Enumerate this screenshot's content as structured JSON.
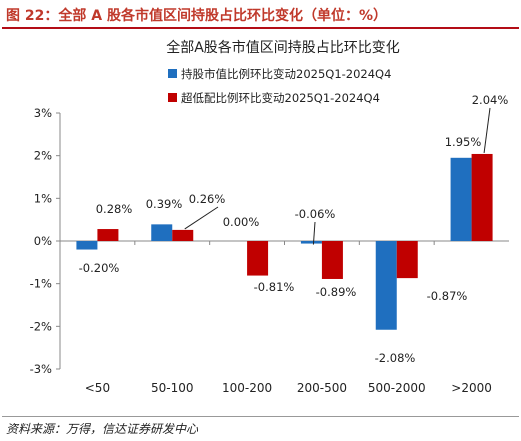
{
  "figure_label": "图 22：全部 A 股各市值区间持股占比环比变化（单位：%）",
  "source": "资料来源：万得，信达证券研发中心",
  "chart_data": {
    "type": "bar",
    "title": "全部A股各市值区间持股占比环比变化",
    "categories": [
      "<50",
      "50-100",
      "100-200",
      "200-500",
      "500-2000",
      ">2000"
    ],
    "series": [
      {
        "name": "持股市值比例环比变动2025Q1-2024Q4",
        "color": "#1f6fbf",
        "values": [
          -0.2,
          0.39,
          0.0,
          -0.06,
          -2.08,
          1.95
        ],
        "labels": [
          "-0.20%",
          "0.39%",
          "0.00%",
          "-0.06%",
          "-2.08%",
          "1.95%"
        ]
      },
      {
        "name": "超低配比例环比变动2025Q1-2024Q4",
        "color": "#c00000",
        "values": [
          0.28,
          0.26,
          -0.81,
          -0.89,
          -0.87,
          2.04
        ],
        "labels": [
          "0.28%",
          "0.26%",
          "-0.81%",
          "-0.89%",
          "-0.87%",
          "2.04%"
        ]
      }
    ],
    "yticks": [
      "3%",
      "2%",
      "1%",
      "0%",
      "-1%",
      "-2%",
      "-3%"
    ],
    "ylim": [
      -3,
      3
    ],
    "xlabel": "",
    "ylabel": "",
    "grid": false,
    "legend_position": "top-left"
  }
}
